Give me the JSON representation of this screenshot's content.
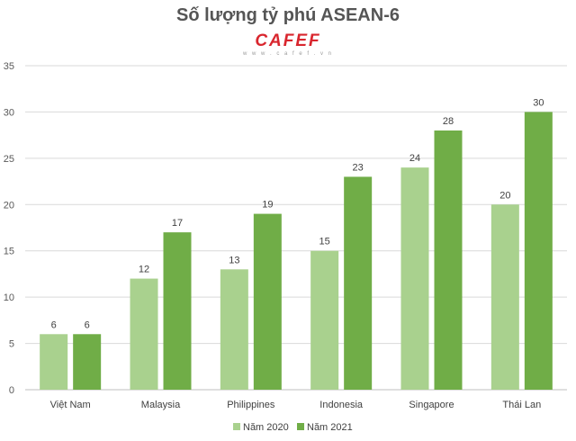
{
  "colors": {
    "series_2020": "#a9d18e",
    "series_2021": "#70ad47",
    "logo": "#d9262e",
    "grid": "#d9d9d9"
  },
  "logo": {
    "brand": "CAFEF",
    "sub": "w w w . c a f e f . v n"
  },
  "chart_data": {
    "type": "bar",
    "title": "Số lượng tỷ phú ASEAN-6",
    "categories": [
      "Việt Nam",
      "Malaysia",
      "Philippines",
      "Indonesia",
      "Singapore",
      "Thái Lan"
    ],
    "series": [
      {
        "name": "Năm 2020",
        "values": [
          6,
          12,
          13,
          15,
          24,
          20
        ]
      },
      {
        "name": "Năm 2021",
        "values": [
          6,
          17,
          19,
          23,
          28,
          30
        ]
      }
    ],
    "ylim": [
      0,
      35
    ],
    "yticks": [
      0,
      5,
      10,
      15,
      20,
      25,
      30,
      35
    ],
    "grid": true,
    "legend": "bottom",
    "data_labels": true
  }
}
